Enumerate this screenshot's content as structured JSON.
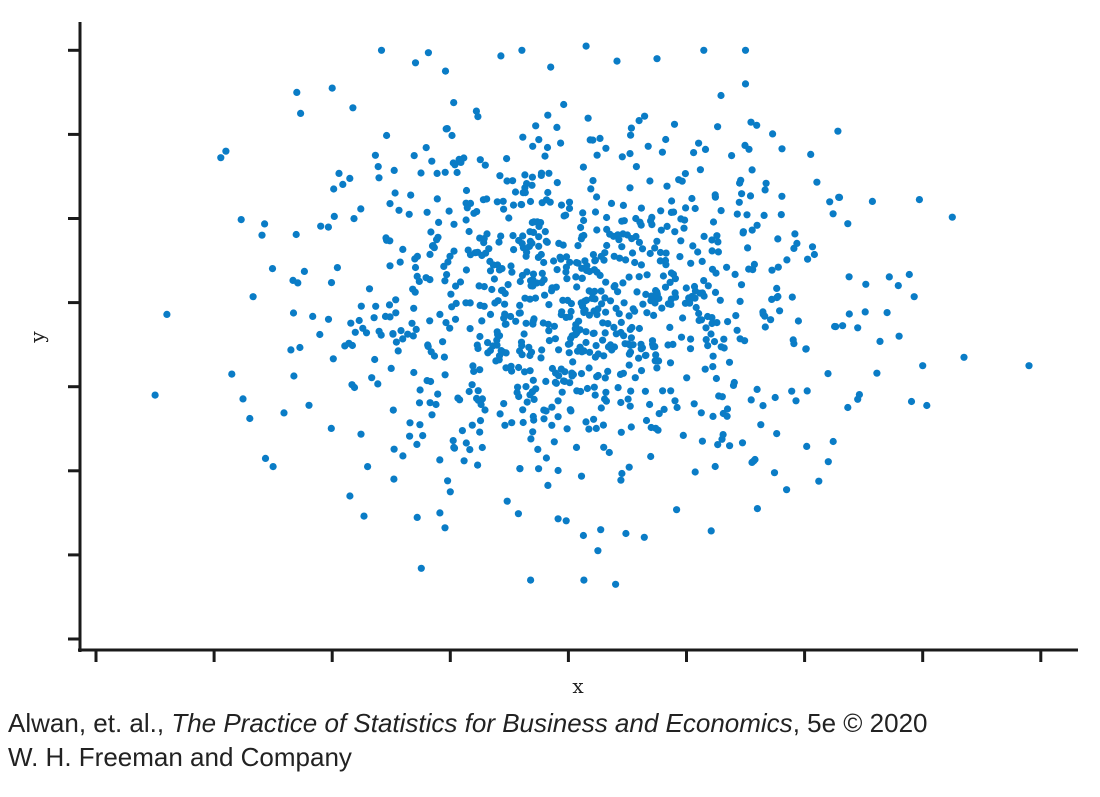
{
  "chart_data": {
    "type": "scatter",
    "title": "",
    "xlabel": "x",
    "ylabel": "y",
    "xlim": [
      0,
      9
    ],
    "ylim": [
      0,
      7.5
    ],
    "x_ticks": [
      0,
      1,
      2,
      3,
      4,
      5,
      6,
      7,
      8
    ],
    "y_ticks": [
      0,
      1,
      2,
      3,
      4,
      5,
      6,
      7
    ],
    "tick_labels_shown": false,
    "grid": false,
    "legend": "none",
    "marker_color": "#0a7cc6",
    "point_count": 1000,
    "center": [
      4.05,
      4.0
    ],
    "spread_sd": [
      1.1,
      1.05
    ],
    "correlation": 0.0,
    "notable_points": [
      {
        "x": 0.5,
        "y": 2.9
      },
      {
        "x": 1.1,
        "y": 5.8
      },
      {
        "x": 1.15,
        "y": 3.15
      },
      {
        "x": 1.5,
        "y": 2.05
      },
      {
        "x": 1.7,
        "y": 6.5
      },
      {
        "x": 2.0,
        "y": 6.55
      },
      {
        "x": 2.3,
        "y": 2.05
      },
      {
        "x": 2.15,
        "y": 1.7
      },
      {
        "x": 3.0,
        "y": 1.75
      },
      {
        "x": 3.85,
        "y": 6.8
      },
      {
        "x": 4.15,
        "y": 7.05
      },
      {
        "x": 4.25,
        "y": 1.05
      },
      {
        "x": 4.4,
        "y": 0.65
      },
      {
        "x": 4.75,
        "y": 6.9
      },
      {
        "x": 5.5,
        "y": 7.0
      },
      {
        "x": 5.5,
        "y": 6.6
      },
      {
        "x": 5.6,
        "y": 1.55
      },
      {
        "x": 6.45,
        "y": 3.7
      },
      {
        "x": 6.45,
        "y": 2.85
      },
      {
        "x": 6.8,
        "y": 3.6
      },
      {
        "x": 7.0,
        "y": 3.25
      },
      {
        "x": 7.35,
        "y": 3.35
      },
      {
        "x": 7.9,
        "y": 3.25
      }
    ]
  },
  "credit": {
    "authors": "Alwan, et. al., ",
    "book_title": "The Practice of Statistics for Business and Economics",
    "edition": ", 5e © 2020",
    "publisher": "W. H. Freeman and Company"
  }
}
